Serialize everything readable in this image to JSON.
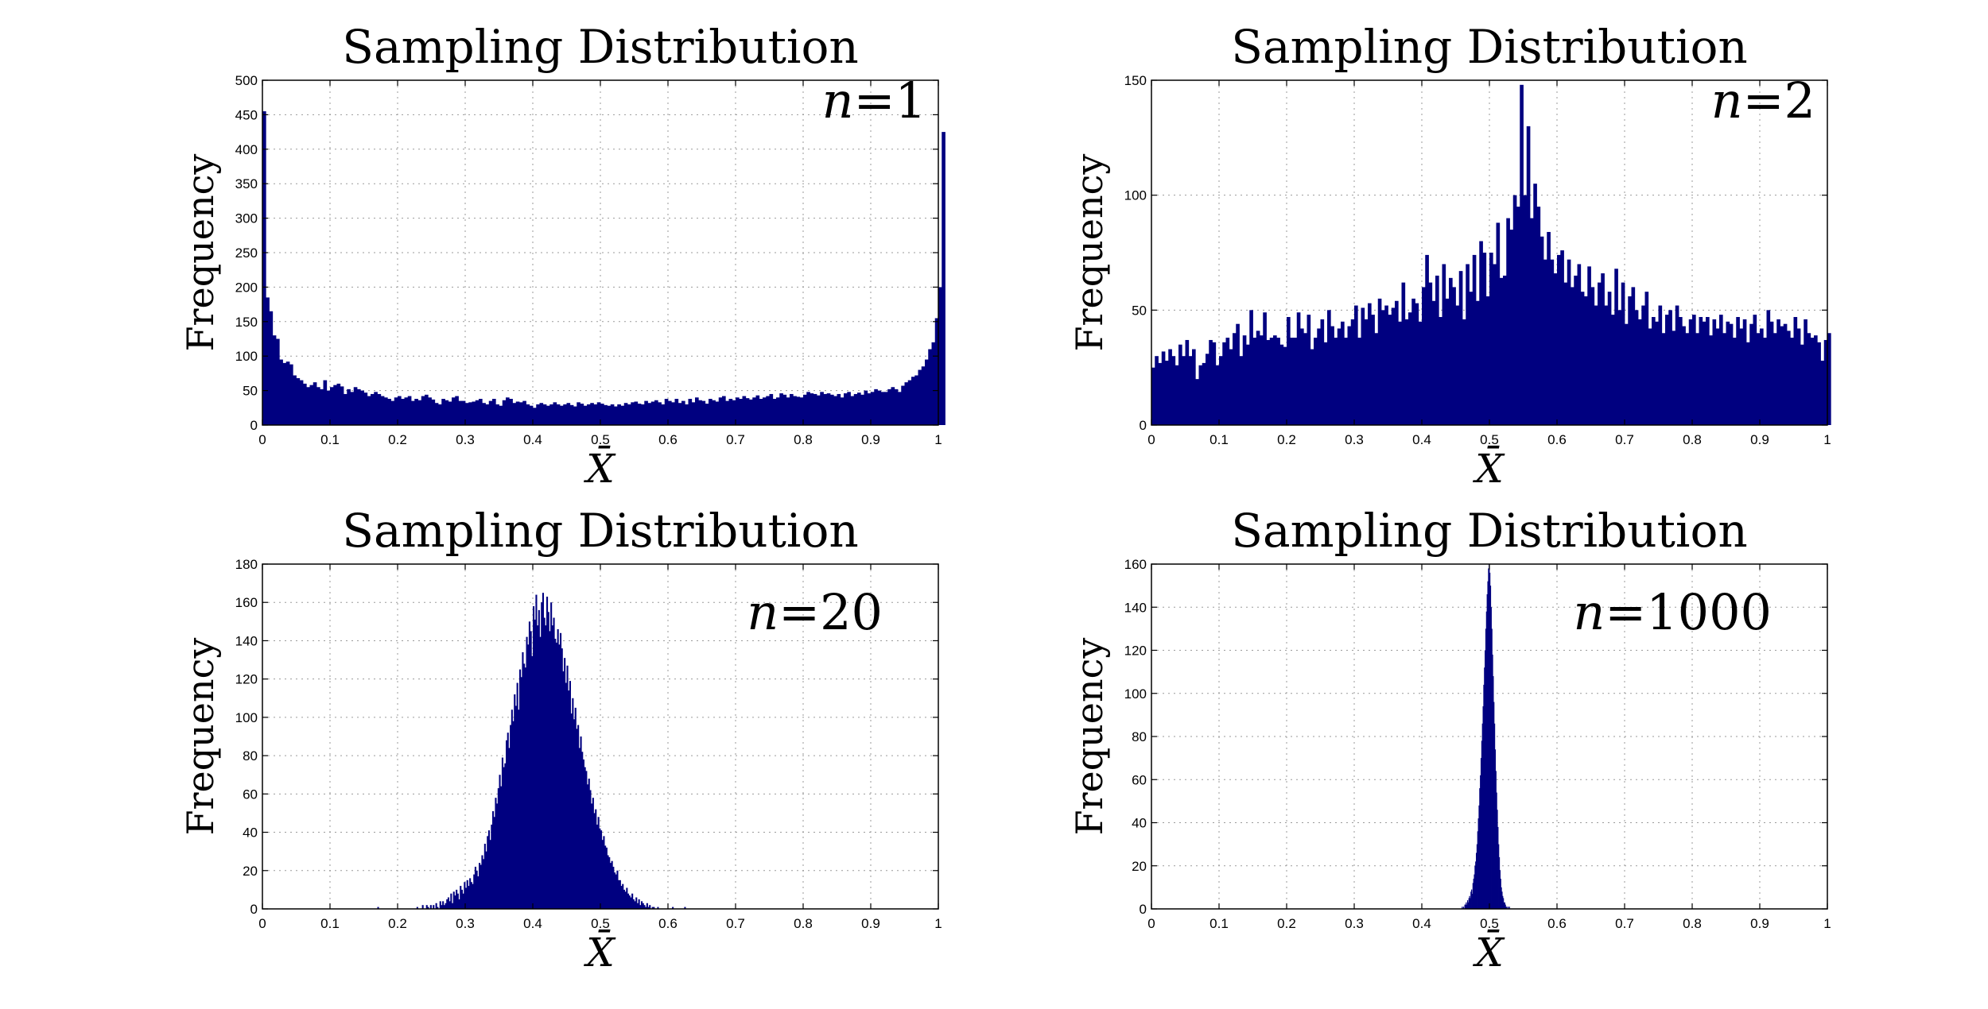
{
  "chart_data": [
    {
      "type": "bar",
      "title": "Sampling Distribution",
      "ylabel": "Frequency",
      "xlabel": "X̄",
      "annotation_n": "n",
      "annotation_value": "=1",
      "xlim": [
        0,
        1
      ],
      "ylim": [
        0,
        500
      ],
      "xticks": [
        "0",
        "0.1",
        "0.2",
        "0.3",
        "0.4",
        "0.5",
        "0.6",
        "0.7",
        "0.8",
        "0.9",
        "1"
      ],
      "yticks": [
        "0",
        "50",
        "100",
        "150",
        "200",
        "250",
        "300",
        "350",
        "400",
        "450",
        "500"
      ],
      "grid": true,
      "color": "#000080",
      "bin_width": 0.005,
      "bin_start": 0.0,
      "values": [
        455,
        185,
        165,
        130,
        125,
        95,
        90,
        92,
        88,
        72,
        68,
        65,
        60,
        55,
        58,
        62,
        55,
        52,
        65,
        50,
        55,
        58,
        60,
        56,
        45,
        52,
        48,
        55,
        52,
        50,
        47,
        42,
        45,
        48,
        45,
        42,
        40,
        38,
        35,
        40,
        42,
        38,
        40,
        42,
        35,
        38,
        36,
        42,
        44,
        40,
        37,
        32,
        30,
        38,
        36,
        34,
        40,
        42,
        35,
        35,
        32,
        33,
        34,
        36,
        38,
        32,
        30,
        35,
        38,
        30,
        28,
        36,
        40,
        38,
        32,
        34,
        33,
        35,
        30,
        28,
        25,
        30,
        32,
        30,
        28,
        30,
        33,
        30,
        28,
        30,
        32,
        29,
        27,
        33,
        31,
        28,
        30,
        32,
        30,
        33,
        31,
        29,
        28,
        30,
        27,
        30,
        28,
        32,
        30,
        33,
        34,
        31,
        30,
        35,
        32,
        34,
        36,
        33,
        30,
        38,
        35,
        33,
        38,
        32,
        35,
        30,
        38,
        33,
        40,
        36,
        35,
        31,
        38,
        36,
        34,
        40,
        42,
        35,
        38,
        36,
        40,
        38,
        42,
        39,
        37,
        40,
        43,
        38,
        40,
        42,
        45,
        38,
        40,
        46,
        44,
        40,
        45,
        42,
        41,
        40,
        44,
        48,
        46,
        45,
        43,
        48,
        45,
        46,
        44,
        42,
        45,
        40,
        46,
        48,
        42,
        45,
        47,
        44,
        50,
        46,
        48,
        52,
        50,
        48,
        48,
        52,
        55,
        52,
        48,
        57,
        62,
        65,
        70,
        72,
        80,
        85,
        95,
        110,
        120,
        155,
        200,
        425
      ]
    },
    {
      "type": "bar",
      "title": "Sampling Distribution",
      "ylabel": "Frequency",
      "xlabel": "X̄",
      "annotation_n": "n",
      "annotation_value": "=2",
      "xlim": [
        0,
        1
      ],
      "ylim": [
        0,
        150
      ],
      "xticks": [
        "0",
        "0.1",
        "0.2",
        "0.3",
        "0.4",
        "0.5",
        "0.6",
        "0.7",
        "0.8",
        "0.9",
        "1"
      ],
      "yticks": [
        "0",
        "50",
        "100",
        "150"
      ],
      "grid": true,
      "color": "#000080",
      "bin_width": 0.005,
      "bin_start": 0.0,
      "values": [
        25,
        30,
        27,
        32,
        28,
        33,
        30,
        26,
        35,
        30,
        37,
        30,
        33,
        20,
        26,
        27,
        31,
        37,
        36,
        26,
        30,
        36,
        38,
        33,
        40,
        44,
        30,
        39,
        35,
        50,
        38,
        41,
        39,
        49,
        37,
        38,
        39,
        38,
        35,
        34,
        47,
        38,
        38,
        49,
        42,
        40,
        48,
        33,
        38,
        42,
        46,
        36,
        50,
        43,
        38,
        42,
        45,
        38,
        43,
        46,
        52,
        38,
        51,
        46,
        53,
        48,
        40,
        55,
        50,
        52,
        48,
        51,
        54,
        45,
        62,
        46,
        49,
        55,
        53,
        45,
        60,
        74,
        62,
        54,
        65,
        47,
        70,
        55,
        64,
        60,
        52,
        67,
        46,
        70,
        58,
        74,
        54,
        80,
        75,
        56,
        75,
        70,
        88,
        64,
        65,
        90,
        85,
        100,
        95,
        148,
        100,
        130,
        90,
        105,
        95,
        82,
        72,
        84,
        72,
        66,
        74,
        76,
        62,
        72,
        60,
        65,
        70,
        58,
        56,
        69,
        60,
        52,
        62,
        66,
        52,
        58,
        48,
        68,
        50,
        62,
        44,
        56,
        60,
        50,
        46,
        52,
        58,
        42,
        47,
        45,
        52,
        40,
        48,
        50,
        41,
        52,
        47,
        43,
        40,
        46,
        48,
        40,
        47,
        45,
        47,
        39,
        46,
        42,
        48,
        40,
        45,
        44,
        38,
        47,
        42,
        46,
        36,
        44,
        48,
        40,
        42,
        38,
        50,
        45,
        40,
        46,
        43,
        44,
        41,
        38,
        47,
        42,
        35,
        46,
        40,
        38,
        39,
        36,
        28,
        37,
        40
      ]
    },
    {
      "type": "bar",
      "title": "Sampling Distribution",
      "ylabel": "Frequency",
      "xlabel": "X̄",
      "annotation_n": "n",
      "annotation_value": "=20",
      "xlim": [
        0,
        1
      ],
      "ylim": [
        0,
        180
      ],
      "xticks": [
        "0",
        "0.1",
        "0.2",
        "0.3",
        "0.4",
        "0.5",
        "0.6",
        "0.7",
        "0.8",
        "0.9",
        "1"
      ],
      "yticks": [
        "0",
        "20",
        "40",
        "60",
        "80",
        "100",
        "120",
        "140",
        "160",
        "180"
      ],
      "grid": true,
      "color": "#000080",
      "bin_width": 0.002,
      "bin_start": 0.16,
      "values": [
        0,
        0,
        0,
        0,
        0,
        1,
        0,
        0,
        0,
        0,
        0,
        0,
        0,
        0,
        0,
        0,
        0,
        0,
        0,
        0,
        0,
        0,
        0,
        0,
        0,
        0,
        0,
        0,
        0,
        0,
        0,
        0,
        0,
        0,
        1,
        0,
        0,
        0,
        2,
        0,
        0,
        2,
        1,
        0,
        2,
        0,
        2,
        0,
        3,
        1,
        0,
        4,
        2,
        4,
        2,
        3,
        5,
        6,
        4,
        8,
        3,
        9,
        7,
        10,
        8,
        5,
        12,
        10,
        8,
        14,
        11,
        15,
        12,
        16,
        14,
        13,
        18,
        22,
        20,
        17,
        24,
        23,
        28,
        26,
        34,
        30,
        38,
        41,
        36,
        44,
        51,
        48,
        58,
        55,
        63,
        70,
        64,
        79,
        74,
        76,
        88,
        92,
        84,
        96,
        104,
        98,
        112,
        106,
        118,
        104,
        125,
        121,
        134,
        128,
        126,
        142,
        138,
        150,
        145,
        132,
        158,
        151,
        164,
        148,
        156,
        142,
        160,
        165,
        152,
        148,
        163,
        155,
        145,
        160,
        148,
        152,
        141,
        139,
        146,
        138,
        144,
        136,
        124,
        131,
        118,
        127,
        114,
        119,
        102,
        110,
        99,
        105,
        94,
        96,
        84,
        90,
        82,
        78,
        74,
        72,
        65,
        68,
        62,
        55,
        58,
        50,
        52,
        44,
        48,
        42,
        41,
        36,
        38,
        33,
        32,
        28,
        27,
        24,
        25,
        22,
        19,
        18,
        20,
        15,
        15,
        12,
        13,
        10,
        9,
        11,
        8,
        7,
        6,
        8,
        5,
        4,
        6,
        3,
        5,
        2,
        4,
        3,
        2,
        1,
        3,
        1,
        2,
        0,
        1,
        1,
        0,
        0,
        1,
        0,
        0,
        0,
        0,
        0,
        0,
        0,
        0,
        0,
        0,
        1,
        0,
        0,
        0,
        0,
        0,
        0,
        0,
        0,
        1
      ]
    },
    {
      "type": "bar",
      "title": "Sampling Distribution",
      "ylabel": "Frequency",
      "xlabel": "X̄",
      "annotation_n": "n",
      "annotation_value": "=1000",
      "xlim": [
        0,
        1
      ],
      "ylim": [
        0,
        160
      ],
      "xticks": [
        "0",
        "0.1",
        "0.2",
        "0.3",
        "0.4",
        "0.5",
        "0.6",
        "0.7",
        "0.8",
        "0.9",
        "1"
      ],
      "yticks": [
        "0",
        "20",
        "40",
        "60",
        "80",
        "100",
        "120",
        "140",
        "160"
      ],
      "grid": true,
      "color": "#000080",
      "bin_width": 0.001,
      "bin_start": 0.458,
      "values": [
        0,
        1,
        0,
        1,
        0,
        2,
        2,
        3,
        2,
        4,
        3,
        5,
        6,
        5,
        8,
        9,
        7,
        12,
        14,
        16,
        20,
        22,
        26,
        30,
        36,
        42,
        48,
        56,
        62,
        70,
        78,
        86,
        94,
        104,
        112,
        120,
        130,
        138,
        146,
        152,
        158,
        160,
        156,
        150,
        140,
        130,
        118,
        108,
        96,
        86,
        74,
        64,
        54,
        46,
        38,
        30,
        24,
        18,
        14,
        10,
        8,
        6,
        5,
        3,
        3,
        2,
        1,
        1,
        0,
        1,
        0,
        1
      ]
    }
  ]
}
